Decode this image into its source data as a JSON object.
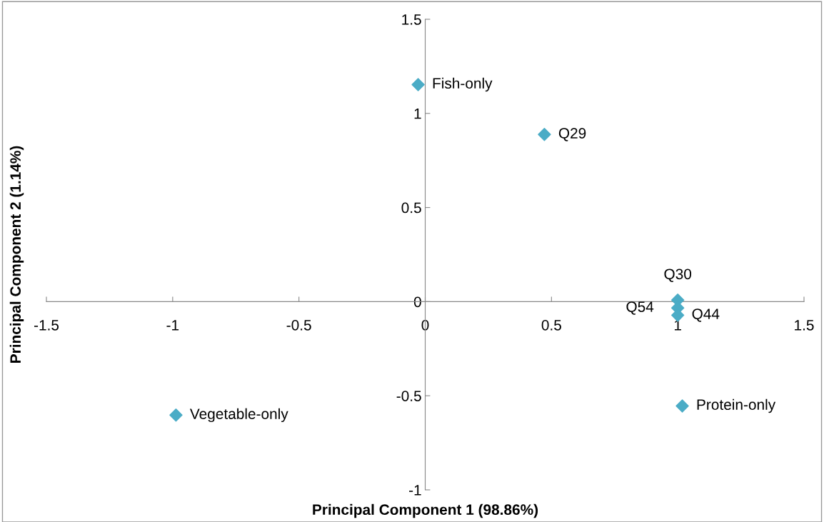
{
  "chart_data": {
    "type": "scatter",
    "xlabel": "Principal Component 1 (98.86%)",
    "ylabel": "Principal Component 2 (1.14%)",
    "x": [
      -0.028,
      0.472,
      1.0,
      1.0,
      1.0,
      1.018,
      -0.987
    ],
    "series": [
      {
        "color": "#4bacc6",
        "values": [
          1.153,
          0.888,
          0.008,
          -0.034,
          -0.072,
          -0.554,
          -0.603
        ]
      }
    ],
    "marker": "diamond",
    "grid": false,
    "legend": false,
    "xlim": [
      -1.5,
      1.5
    ],
    "xticks": [
      -1.5,
      -1,
      -0.5,
      0,
      0.5,
      1,
      1.5
    ],
    "ylim": [
      -1,
      1.5
    ],
    "yticks": [
      -1,
      -0.5,
      0,
      0.5,
      1,
      1.5
    ],
    "annotations": [
      {
        "text": "Fish-only",
        "x": -0.028,
        "y": 1.153
      },
      {
        "text": "Q29",
        "x": 0.472,
        "y": 0.888
      },
      {
        "text": "Q30",
        "x": 1.0,
        "y": 0.008
      },
      {
        "text": "Q54",
        "x": 1.0,
        "y": -0.034
      },
      {
        "text": "Q44",
        "x": 1.0,
        "y": -0.072
      },
      {
        "text": "Protein-only",
        "x": 1.018,
        "y": -0.554
      },
      {
        "text": "Vegetable-only",
        "x": -0.987,
        "y": -0.603
      }
    ]
  }
}
